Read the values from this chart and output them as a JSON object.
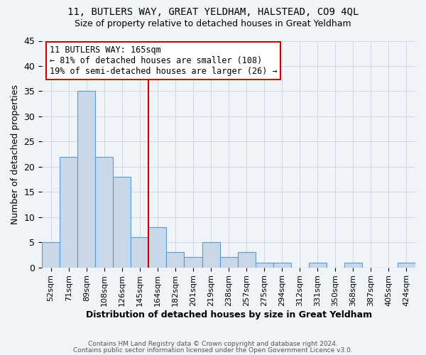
{
  "title1": "11, BUTLERS WAY, GREAT YELDHAM, HALSTEAD, CO9 4QL",
  "title2": "Size of property relative to detached houses in Great Yeldham",
  "xlabel": "Distribution of detached houses by size in Great Yeldham",
  "ylabel": "Number of detached properties",
  "bin_labels": [
    "52sqm",
    "71sqm",
    "89sqm",
    "108sqm",
    "126sqm",
    "145sqm",
    "164sqm",
    "182sqm",
    "201sqm",
    "219sqm",
    "238sqm",
    "257sqm",
    "275sqm",
    "294sqm",
    "312sqm",
    "331sqm",
    "350sqm",
    "368sqm",
    "387sqm",
    "405sqm",
    "424sqm"
  ],
  "bar_heights": [
    5,
    22,
    35,
    22,
    18,
    6,
    8,
    3,
    2,
    5,
    2,
    3,
    1,
    1,
    0,
    1,
    0,
    1,
    0,
    0,
    1
  ],
  "bar_color": "#c8d8e8",
  "bar_edge_color": "#5b9bd5",
  "vline_color": "#cc0000",
  "annotation_text": "11 BUTLERS WAY: 165sqm\n← 81% of detached houses are smaller (108)\n19% of semi-detached houses are larger (26) →",
  "annotation_box_color": "white",
  "annotation_box_edge_color": "#cc0000",
  "ylim": [
    0,
    45
  ],
  "yticks": [
    0,
    5,
    10,
    15,
    20,
    25,
    30,
    35,
    40,
    45
  ],
  "grid_color": "#d0d8e8",
  "footer_text1": "Contains HM Land Registry data © Crown copyright and database right 2024.",
  "footer_text2": "Contains public sector information licensed under the Open Government Licence v3.0.",
  "bg_color": "#f0f4f8"
}
